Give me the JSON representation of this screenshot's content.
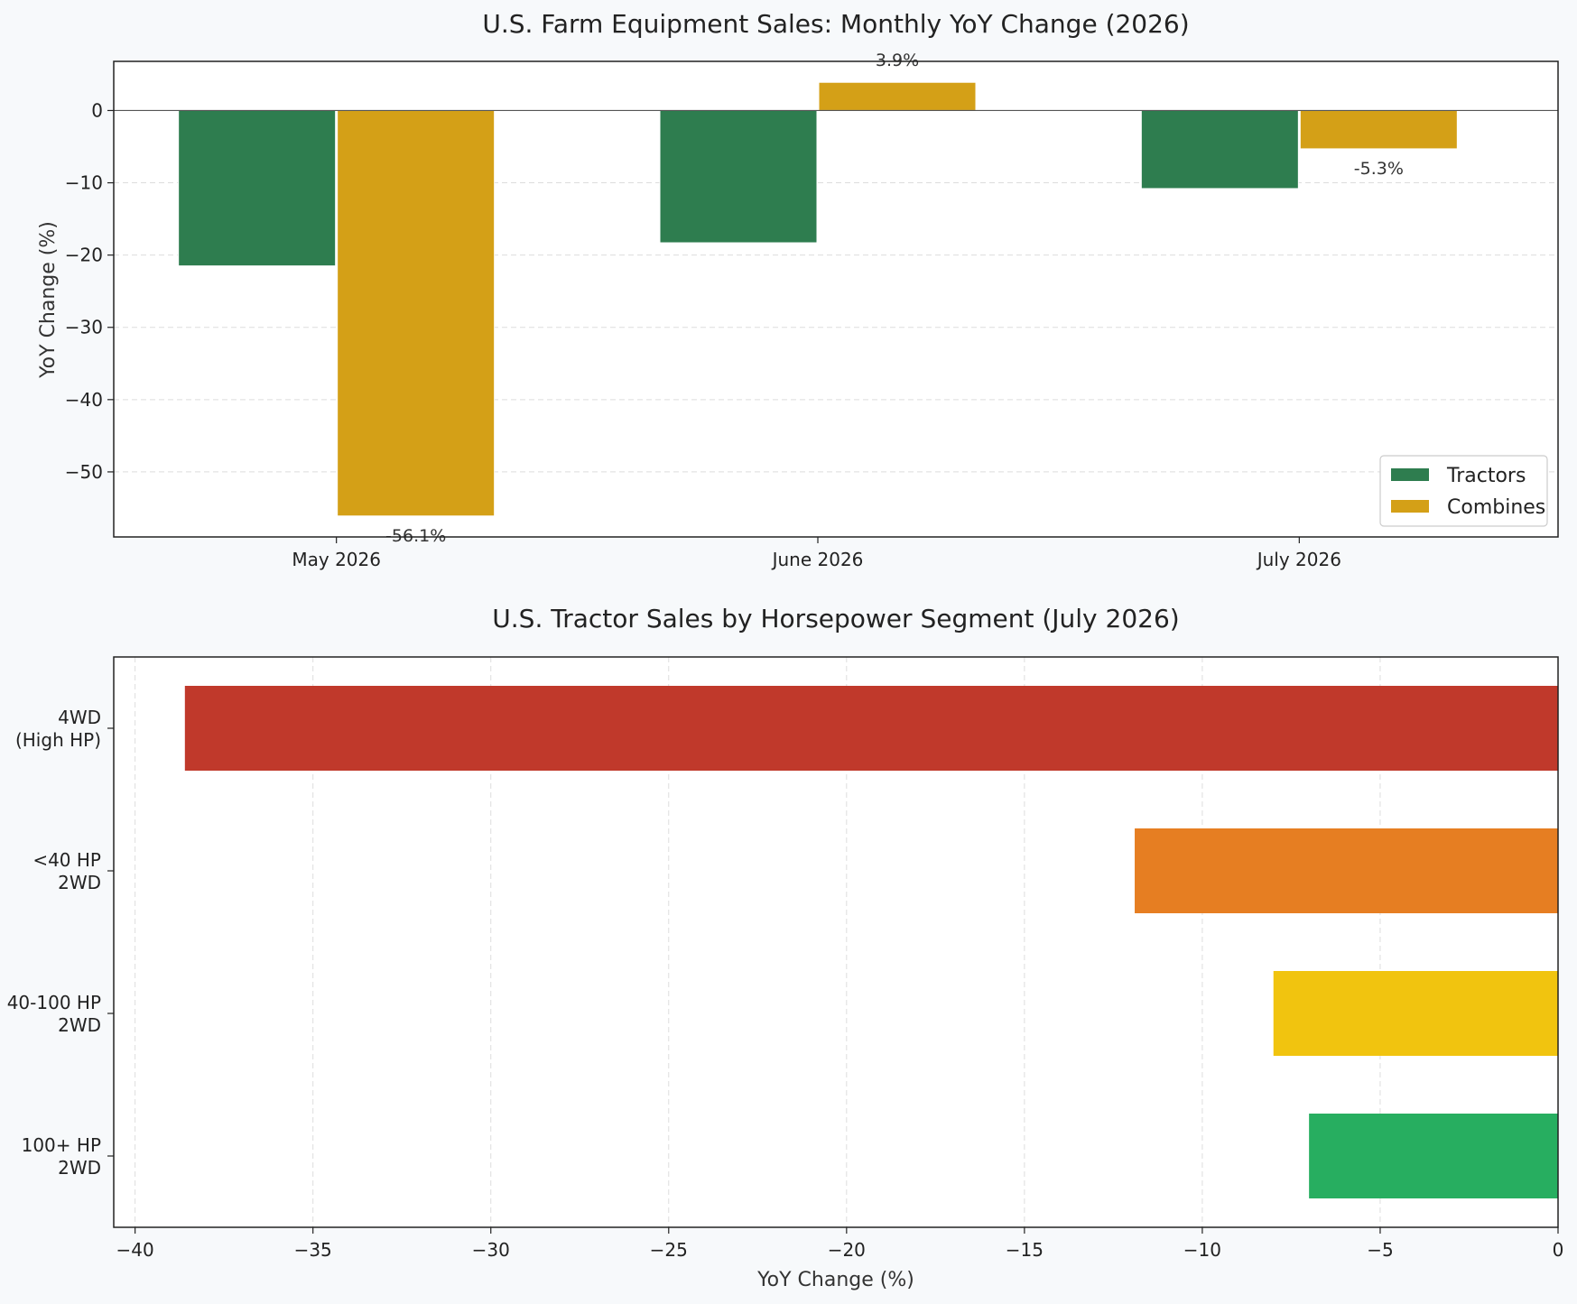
{
  "chart_data": [
    {
      "type": "bar",
      "title": "U.S. Farm Equipment Sales: Monthly YoY Change (2026)",
      "xlabel": "",
      "ylabel": "YoY Change (%)",
      "categories": [
        "May 2026",
        "June 2026",
        "July 2026"
      ],
      "series": [
        {
          "name": "Tractors",
          "color": "#2e7d4f",
          "values": [
            -21.5,
            -18.3,
            -10.8
          ]
        },
        {
          "name": "Combines",
          "color": "#d4a017",
          "values": [
            -56.1,
            3.9,
            -5.3
          ]
        }
      ],
      "data_labels": {
        "May 2026": "-56.1%",
        "June 2026": "3.9%",
        "July 2026": "-5.3%"
      },
      "ylim": [
        -59,
        6.8
      ],
      "yticks": [
        0,
        -10,
        -20,
        -30,
        -40,
        -50
      ],
      "ytick_labels": [
        "0",
        "−10",
        "−20",
        "−30",
        "−40",
        "−50"
      ],
      "grid": true,
      "legend": "lower-right"
    },
    {
      "type": "bar",
      "orientation": "horizontal",
      "title": "U.S. Tractor Sales by Horsepower Segment (July 2026)",
      "xlabel": "YoY Change (%)",
      "ylabel": "",
      "categories": [
        {
          "line1": "4WD",
          "line2": "(High HP)"
        },
        {
          "line1": "<40 HP",
          "line2": "2WD"
        },
        {
          "line1": "40-100 HP",
          "line2": "2WD"
        },
        {
          "line1": "100+ HP",
          "line2": "2WD"
        }
      ],
      "values": [
        -38.6,
        -11.9,
        -8.0,
        -7.0
      ],
      "colors": [
        "#c0392b",
        "#e67e22",
        "#f1c40f",
        "#27ae60"
      ],
      "xlim": [
        -40.6,
        0
      ],
      "xticks": [
        -40,
        -35,
        -30,
        -25,
        -20,
        -15,
        -10,
        -5,
        0
      ],
      "xtick_labels": [
        "−40",
        "−35",
        "−30",
        "−25",
        "−20",
        "−15",
        "−10",
        "−5",
        "0"
      ],
      "grid": true
    }
  ]
}
